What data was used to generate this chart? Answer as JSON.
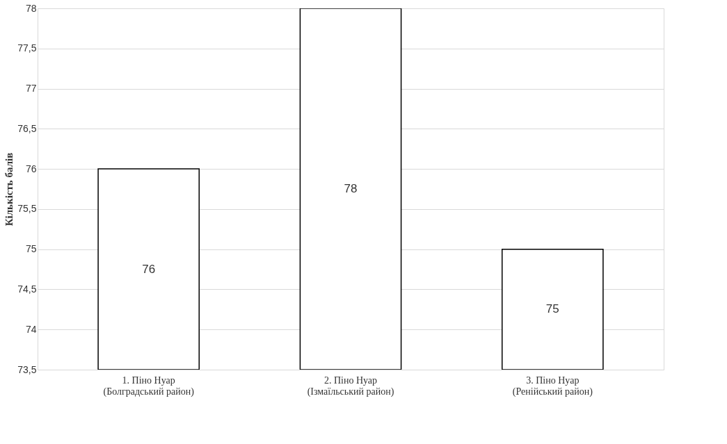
{
  "chart_data": {
    "type": "bar",
    "ylabel": "Кількість балів",
    "categories": [
      "1. Піно Нуар\n(Болградський район)",
      "2. Піно Нуар\n(Ізмаїльський район)",
      "3. Піно Нуар\n(Ренійський район)"
    ],
    "values": [
      76,
      78,
      75
    ],
    "color": "#ffffff",
    "ylim": [
      73.5,
      78
    ],
    "yticks": [
      {
        "value": 73.5,
        "label": "73,5"
      },
      74,
      {
        "value": 74.5,
        "label": "74,5"
      },
      75,
      {
        "value": 75.5,
        "label": "75,5"
      },
      76,
      {
        "value": 76.5,
        "label": "76,5"
      },
      77,
      {
        "value": 77.5,
        "label": "77,5"
      },
      78
    ],
    "grid": "y",
    "data_labels": true
  }
}
